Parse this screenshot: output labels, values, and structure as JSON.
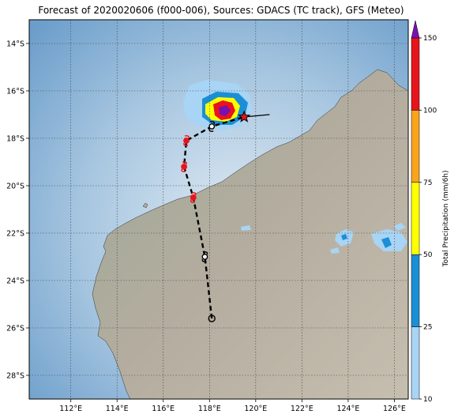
{
  "title": "Forecast of 2020020606 (f000-006), Sources: GDACS (TC track), GFS (Meteo)",
  "map": {
    "lon_range": [
      110.2,
      126.6
    ],
    "lat_range": [
      -29.0,
      -13.0
    ],
    "x_ticks": [
      "112°E",
      "114°E",
      "116°E",
      "118°E",
      "120°E",
      "122°E",
      "124°E",
      "126°E"
    ],
    "x_tick_values": [
      112,
      114,
      116,
      118,
      120,
      122,
      124,
      126
    ],
    "y_ticks": [
      "14°S",
      "16°S",
      "18°S",
      "20°S",
      "22°S",
      "24°S",
      "26°S",
      "28°S"
    ],
    "y_tick_values": [
      -14,
      -16,
      -18,
      -20,
      -22,
      -24,
      -26,
      -28
    ],
    "grid": true
  },
  "colorbar": {
    "label": "Total Precipitation (mm/6h)",
    "ticks": [
      "10",
      "25",
      "50",
      "75",
      "100",
      "150"
    ],
    "bands": [
      {
        "from": 10,
        "to": 25,
        "color": "#a8d4f5"
      },
      {
        "from": 25,
        "to": 50,
        "color": "#1b8fd6"
      },
      {
        "from": 50,
        "to": 75,
        "color": "#ffff00"
      },
      {
        "from": 75,
        "to": 100,
        "color": "#f8a41c"
      },
      {
        "from": 100,
        "to": 150,
        "color": "#e8141c"
      }
    ],
    "extend_color": "#7a10b0"
  },
  "track": {
    "points": [
      {
        "lon": 118.1,
        "lat": -25.6,
        "marker": "circle"
      },
      {
        "lon": 117.8,
        "lat": -23.0,
        "marker": "tc-white"
      },
      {
        "lon": 117.3,
        "lat": -20.5,
        "marker": "tc-red"
      },
      {
        "lon": 116.9,
        "lat": -19.2,
        "marker": "tc-red"
      },
      {
        "lon": 117.0,
        "lat": -18.1,
        "marker": "tc-red"
      },
      {
        "lon": 118.1,
        "lat": -17.5,
        "marker": "tc-white"
      },
      {
        "lon": 119.5,
        "lat": -17.1,
        "marker": "star"
      }
    ],
    "forecast_line_end": {
      "lon": 120.6,
      "lat": -17.0
    }
  }
}
